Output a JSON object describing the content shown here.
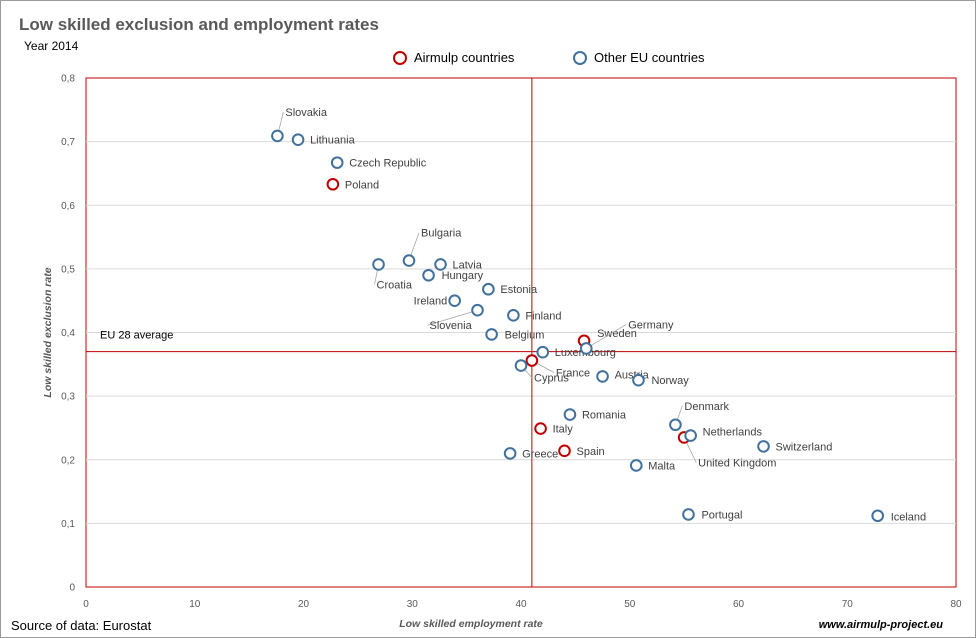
{
  "chart_data": {
    "type": "scatter",
    "title": "Low skilled exclusion and employment rates",
    "subtitle": "Year 2014",
    "xlabel": "Low skilled employment rate",
    "ylabel": "Low skilled exclusion rate",
    "xlim": [
      0,
      80
    ],
    "ylim": [
      0,
      0.8
    ],
    "x_ticks": [
      "0",
      "10",
      "20",
      "30",
      "40",
      "50",
      "60",
      "70",
      "80"
    ],
    "y_ticks": [
      "0",
      "0,1",
      "0,2",
      "0,3",
      "0,4",
      "0,5",
      "0,6",
      "0,7",
      "0,8"
    ],
    "grid": "horizontal",
    "legend_position": "top-center",
    "reference_lines": {
      "x": 41,
      "y": 0.37,
      "label": "EU 28 average"
    },
    "series": [
      {
        "name": "Airmulp countries",
        "color": "#C00000",
        "points": [
          {
            "label": "Poland",
            "x": 22.7,
            "y": 0.633
          },
          {
            "label": "Sweden",
            "x": 45.8,
            "y": 0.387
          },
          {
            "label": "France",
            "x": 41.0,
            "y": 0.356
          },
          {
            "label": "Italy",
            "x": 41.8,
            "y": 0.249
          },
          {
            "label": "Spain",
            "x": 44.0,
            "y": 0.214
          },
          {
            "label": "United Kingdom",
            "x": 55.0,
            "y": 0.235
          }
        ]
      },
      {
        "name": "Other EU countries",
        "color": "#41719C",
        "points": [
          {
            "label": "Slovakia",
            "x": 17.6,
            "y": 0.709
          },
          {
            "label": "Lithuania",
            "x": 19.5,
            "y": 0.703
          },
          {
            "label": "Czech Republic",
            "x": 23.1,
            "y": 0.667
          },
          {
            "label": "Bulgaria",
            "x": 29.7,
            "y": 0.513
          },
          {
            "label": "Croatia",
            "x": 26.9,
            "y": 0.507
          },
          {
            "label": "Latvia",
            "x": 32.6,
            "y": 0.507
          },
          {
            "label": "Hungary",
            "x": 31.5,
            "y": 0.49
          },
          {
            "label": "Estonia",
            "x": 37.0,
            "y": 0.468
          },
          {
            "label": "Ireland",
            "x": 33.9,
            "y": 0.45
          },
          {
            "label": "Slovenia",
            "x": 36.0,
            "y": 0.435
          },
          {
            "label": "Finland",
            "x": 39.3,
            "y": 0.427
          },
          {
            "label": "Belgium",
            "x": 37.3,
            "y": 0.397
          },
          {
            "label": "Luxembourg",
            "x": 42.0,
            "y": 0.369
          },
          {
            "label": "Germany",
            "x": 46.0,
            "y": 0.375
          },
          {
            "label": "Cyprus",
            "x": 40.0,
            "y": 0.348
          },
          {
            "label": "Austria",
            "x": 47.5,
            "y": 0.331
          },
          {
            "label": "Norway",
            "x": 50.8,
            "y": 0.325
          },
          {
            "label": "Romania",
            "x": 44.5,
            "y": 0.271
          },
          {
            "label": "Greece",
            "x": 39.0,
            "y": 0.21
          },
          {
            "label": "Denmark",
            "x": 54.2,
            "y": 0.255
          },
          {
            "label": "Netherlands",
            "x": 55.6,
            "y": 0.238
          },
          {
            "label": "Switzerland",
            "x": 62.3,
            "y": 0.221
          },
          {
            "label": "Malta",
            "x": 50.6,
            "y": 0.191
          },
          {
            "label": "Portugal",
            "x": 55.4,
            "y": 0.114
          },
          {
            "label": "Iceland",
            "x": 72.8,
            "y": 0.112
          }
        ]
      }
    ]
  },
  "footer": {
    "source": "Source of data: Eurostat",
    "website": "www.airmulp-project.eu"
  }
}
